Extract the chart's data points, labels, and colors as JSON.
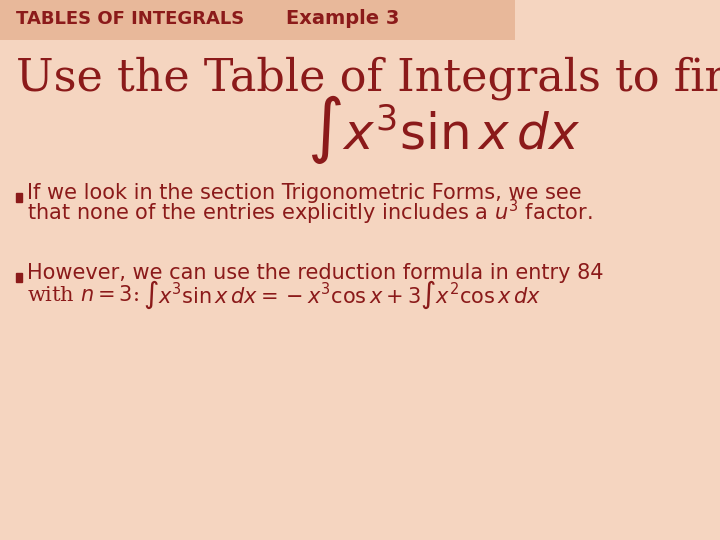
{
  "background_color": "#f5d5c0",
  "header_bar_color": "#e8b89a",
  "title_left": "TABLES OF INTEGRALS",
  "title_right": "Example 3",
  "title_color": "#8b1a1a",
  "main_heading": "Use the Table of Integrals to find",
  "main_heading_color": "#8b1a1a",
  "main_heading_fontsize": 32,
  "integral_formula": "$\\int x^3 \\sin x \\, dx$",
  "integral_fontsize": 36,
  "bullet1_text1": "If we look in the section Trigonometric Forms, we see",
  "bullet1_text2": "that none of the entries explicitly includes a $u^3$ factor.",
  "bullet2_text1": "However, we can use the reduction formula in entry 84",
  "bullet2_text2_prefix": "with $n = 3$:",
  "bullet2_formula": "$\\int x^3 \\sin x \\, dx = -x^3 \\cos x + 3\\int x^2 \\cos x \\, dx$",
  "bullet_color": "#8b1a1a",
  "bullet_fontsize": 15,
  "header_fontsize": 13,
  "example_fontsize": 14
}
